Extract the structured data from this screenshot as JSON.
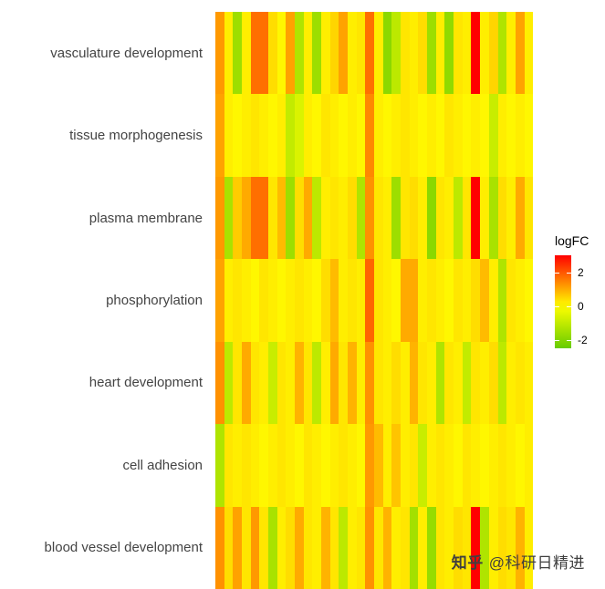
{
  "chart_data": {
    "type": "heatmap",
    "title": "",
    "categories": [
      "vasculature development",
      "tissue morphogenesis",
      "plasma membrane",
      "phosphorylation",
      "heart development",
      "cell adhesion",
      "blood vessel development"
    ],
    "n_columns": 36,
    "value_domain": [
      -2.5,
      3
    ],
    "matrix": [
      [
        1.2,
        0.2,
        -1.6,
        0.2,
        1.7,
        1.7,
        0.4,
        0.1,
        1.1,
        -1.3,
        0.2,
        -1.6,
        0.2,
        0.5,
        1.1,
        0.2,
        0.3,
        1.7,
        0.2,
        -1.9,
        -1.1,
        0.3,
        0.2,
        0.4,
        -1.6,
        0.2,
        -1.8,
        0.3,
        0.2,
        3,
        0.2,
        0.5,
        -1.3,
        0.2,
        1.1,
        0.2
      ],
      [
        1.1,
        0.2,
        0.1,
        0.2,
        0.3,
        0.2,
        0.1,
        0.2,
        -1.0,
        -0.6,
        0.2,
        0.1,
        0.3,
        0.2,
        0.1,
        0.2,
        0.1,
        1.4,
        0.2,
        0.1,
        0.2,
        0.3,
        0.2,
        0.1,
        0.2,
        0.1,
        0.3,
        0.2,
        0.1,
        0.2,
        0.1,
        -0.9,
        0.2,
        0.1,
        0.2,
        0.1
      ],
      [
        1.2,
        -1.4,
        0.6,
        1.0,
        1.7,
        1.7,
        0.3,
        0.8,
        -1.6,
        0.4,
        1.0,
        -1.1,
        0.2,
        0.3,
        0.2,
        0.4,
        -1.3,
        1.3,
        0.3,
        0.2,
        -1.6,
        0.3,
        0.4,
        0.2,
        -1.9,
        0.3,
        0.2,
        -1.1,
        0.3,
        3,
        0.2,
        -1.4,
        0.4,
        0.2,
        1.0,
        0.3
      ],
      [
        1.1,
        0.2,
        0.3,
        0.2,
        0.1,
        0.3,
        0.2,
        0.1,
        0.2,
        0.3,
        0.2,
        0.1,
        0.4,
        0.8,
        0.2,
        0.3,
        0.2,
        1.8,
        0.3,
        0.2,
        0.1,
        1.0,
        1.0,
        0.2,
        0.3,
        0.2,
        0.1,
        0.3,
        0.2,
        0.4,
        0.8,
        0.2,
        -1.3,
        0.3,
        0.2,
        0.1
      ],
      [
        1.3,
        -1.1,
        0.3,
        1.0,
        0.3,
        0.2,
        -0.9,
        0.3,
        0.2,
        0.9,
        0.3,
        -1.1,
        0.2,
        1.0,
        0.3,
        0.9,
        0.2,
        1.3,
        0.3,
        0.2,
        0.4,
        0.2,
        0.9,
        0.3,
        0.2,
        -1.3,
        0.3,
        0.2,
        -1.0,
        0.3,
        0.2,
        0.4,
        -1.1,
        0.2,
        0.3,
        0.2
      ],
      [
        -1.3,
        0.3,
        0.2,
        0.3,
        0.2,
        0.1,
        0.2,
        0.3,
        0.2,
        0.1,
        0.3,
        0.2,
        0.1,
        0.2,
        0.3,
        0.2,
        0.1,
        1.2,
        0.8,
        0.2,
        0.7,
        0.2,
        0.3,
        -0.9,
        0.2,
        0.3,
        0.2,
        0.1,
        0.3,
        0.2,
        0.1,
        0.2,
        0.3,
        0.2,
        0.1,
        0.2
      ],
      [
        1.3,
        0.4,
        1.1,
        0.3,
        1.2,
        0.3,
        -1.4,
        0.2,
        0.4,
        1.0,
        0.3,
        0.2,
        0.9,
        0.3,
        -1.1,
        0.2,
        0.3,
        1.3,
        0.3,
        0.9,
        0.2,
        0.3,
        -1.5,
        0.2,
        -1.7,
        0.3,
        0.2,
        0.4,
        0.3,
        3,
        -1.3,
        0.2,
        0.4,
        0.3,
        0.9,
        0.2
      ]
    ],
    "legend": {
      "title": "logFC",
      "ticks": [
        {
          "label": "2",
          "value": 2
        },
        {
          "label": "0",
          "value": 0
        },
        {
          "label": "-2",
          "value": -2
        }
      ],
      "colors": {
        "high": "#FF0000",
        "mid": "#FFFF00",
        "low": "#66CC00"
      },
      "position": "right"
    },
    "grid": false,
    "xlabel": "",
    "ylabel": ""
  },
  "watermark": {
    "brand": "知乎",
    "handle": "@科研日精进"
  }
}
